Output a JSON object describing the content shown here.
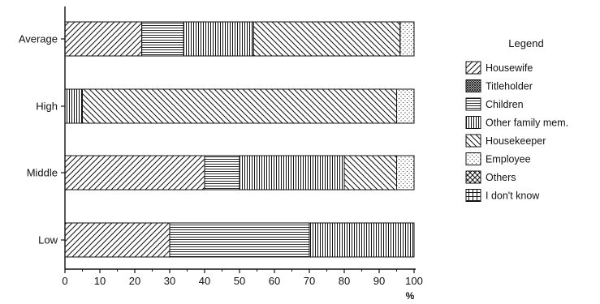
{
  "chart_data": {
    "type": "bar",
    "orientation": "horizontal",
    "stacked": true,
    "categories": [
      "Average",
      "High",
      "Middle",
      "Low"
    ],
    "series": [
      {
        "name": "Housewife",
        "pattern": "diag-up",
        "values": [
          22,
          0,
          40,
          30
        ]
      },
      {
        "name": "Titleholder",
        "pattern": "cross-hatch",
        "values": [
          0,
          0,
          0,
          0
        ]
      },
      {
        "name": "Children",
        "pattern": "horizontal",
        "values": [
          12,
          0,
          10,
          40
        ]
      },
      {
        "name": "Other family mem.",
        "pattern": "vertical",
        "values": [
          20,
          5,
          30,
          30
        ]
      },
      {
        "name": "Housekeeper",
        "pattern": "diag-down",
        "values": [
          42,
          90,
          15,
          0
        ]
      },
      {
        "name": "Employee",
        "pattern": "dots",
        "values": [
          4,
          5,
          5,
          0
        ]
      },
      {
        "name": "Others",
        "pattern": "diag-cross",
        "values": [
          0,
          0,
          0,
          0
        ]
      },
      {
        "name": "I don't know",
        "pattern": "grid",
        "values": [
          0,
          0,
          0,
          0
        ]
      }
    ],
    "xlim": [
      0,
      100
    ],
    "xticks": [
      "0",
      "10",
      "20",
      "30",
      "40",
      "50",
      "60",
      "70",
      "80",
      "90",
      "100"
    ],
    "xlabel": "%",
    "legend_title": "Legend",
    "legend_position": "right",
    "grid": false
  }
}
